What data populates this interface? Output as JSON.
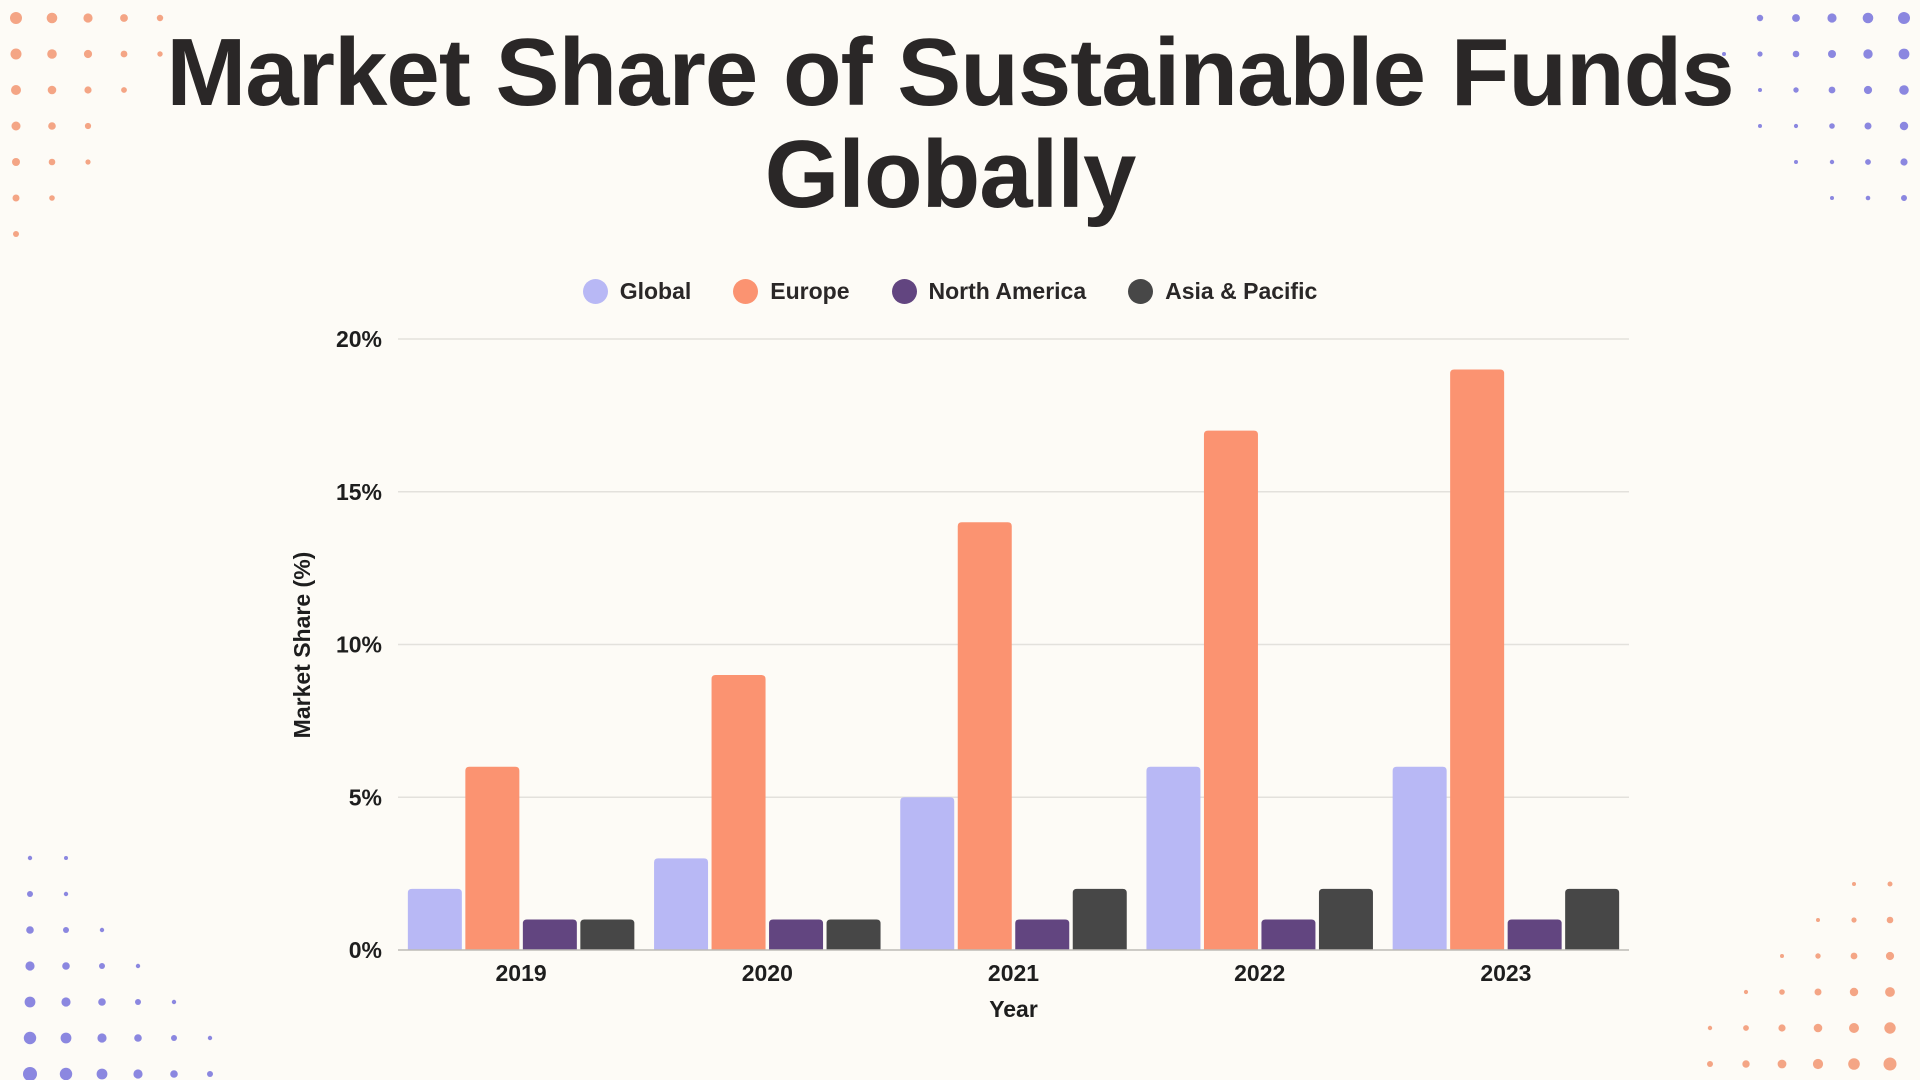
{
  "chart_data": {
    "type": "bar",
    "title": "Market Share of Sustainable Funds Globally",
    "xlabel": "Year",
    "ylabel": "Market Share (%)",
    "ylim": [
      0,
      20
    ],
    "yticks": [
      "0%",
      "5%",
      "10%",
      "15%",
      "20%"
    ],
    "ytick_values": [
      0,
      5,
      10,
      15,
      20
    ],
    "grid": true,
    "legend_placement": "top-center",
    "categories": [
      "2019",
      "2020",
      "2021",
      "2022",
      "2023"
    ],
    "series": [
      {
        "name": "Global",
        "color": "#b8b8f5",
        "values": [
          2,
          3,
          5,
          6,
          6
        ]
      },
      {
        "name": "Europe",
        "color": "#fb9371",
        "values": [
          6,
          9,
          14,
          17,
          19
        ]
      },
      {
        "name": "North America",
        "color": "#624580",
        "values": [
          1,
          1,
          1,
          1,
          1
        ]
      },
      {
        "name": "Asia & Pacific",
        "color": "#474747",
        "values": [
          1,
          1,
          2,
          2,
          2
        ]
      }
    ]
  },
  "decor": {
    "dot_color_warm": "#f4a585",
    "dot_color_cool": "#8b87e0"
  }
}
